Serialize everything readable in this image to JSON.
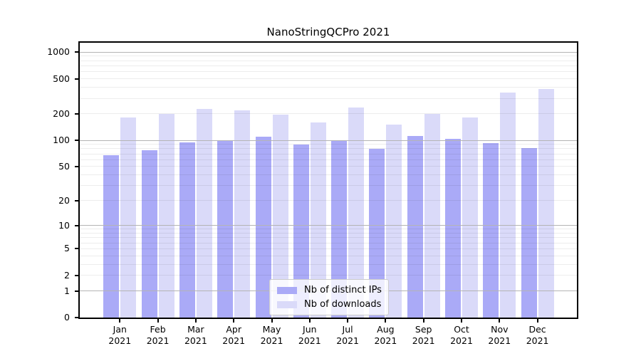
{
  "chart_data": {
    "type": "bar",
    "title": "NanoStringQCPro 2021",
    "categories": [
      "Jan",
      "Feb",
      "Mar",
      "Apr",
      "May",
      "Jun",
      "Jul",
      "Aug",
      "Sep",
      "Oct",
      "Nov",
      "Dec"
    ],
    "category_year": "2021",
    "series": [
      {
        "name": "Nb of distinct IPs",
        "color": "#aaaaf7",
        "values": [
          68,
          77,
          95,
          99,
          110,
          89,
          100,
          80,
          113,
          104,
          92,
          81
        ]
      },
      {
        "name": "Nb of downloads",
        "color": "#dadaf9",
        "values": [
          182,
          200,
          226,
          220,
          197,
          160,
          235,
          150,
          198,
          181,
          350,
          385
        ]
      }
    ],
    "yscale": "log1p",
    "yticks": [
      0,
      1,
      2,
      5,
      10,
      20,
      50,
      100,
      200,
      500,
      1000
    ],
    "major_gridlines": [
      1,
      10,
      100,
      1000
    ],
    "minor_gridlines": [
      2,
      3,
      4,
      5,
      6,
      7,
      8,
      9,
      20,
      30,
      40,
      50,
      60,
      70,
      80,
      90,
      200,
      300,
      400,
      500,
      600,
      700,
      800,
      900
    ],
    "ylim": [
      0,
      1280
    ],
    "grid": true,
    "legend_position": "lower center",
    "xlabel": "",
    "ylabel": ""
  },
  "colors": {
    "background": "#ffffff",
    "spine": "#000000",
    "major_grid": "#b4b4b4",
    "minor_grid": "#ededed",
    "text": "#000000",
    "legend_border": "#cccccc"
  }
}
